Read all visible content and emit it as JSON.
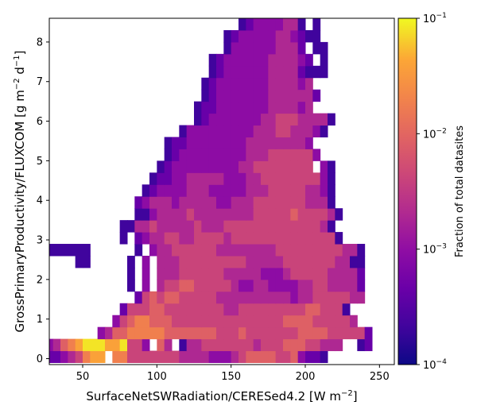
{
  "chart_data": {
    "type": "heatmap",
    "xlabel": "SurfaceNetSWRadiation/CERESed4.2 [W m",
    "xlabel_sup": "−2",
    "xlabel_end": "]",
    "ylabel": "GrossPrimaryProductivity/FLUXCOM [g m",
    "ylabel_sup1": "−2",
    "ylabel_mid": " d",
    "ylabel_sup2": "−1",
    "ylabel_end": "]",
    "xlim": [
      27.5,
      260
    ],
    "ylim": [
      -0.15,
      8.6
    ],
    "xticks": [
      50,
      100,
      150,
      200,
      250
    ],
    "yticks": [
      0,
      1,
      2,
      3,
      4,
      5,
      6,
      7,
      8
    ],
    "colorscale": "plasma",
    "log_color": true,
    "colorbar": {
      "label": "Fraction of total datasites",
      "min": 0.0001,
      "max": 0.1,
      "ticks": [
        {
          "value": 0.0001,
          "base": "10",
          "exp": "−4"
        },
        {
          "value": 0.001,
          "base": "10",
          "exp": "−3"
        },
        {
          "value": 0.01,
          "base": "10",
          "exp": "−2"
        },
        {
          "value": 0.1,
          "base": "10",
          "exp": "−1"
        }
      ]
    },
    "bin_x_edges": [
      25,
      240
    ],
    "bin_x_width": 5,
    "bin_y_start": -0.1,
    "bin_y_width": 0.3,
    "intensity_rows": [
      "22345788.77555555544443334566665563221",
      "34678999889553.64.1445555555455566655444..12.",
      ".......3466777776666666555655555556666555552",
      ".........356776665555555555555556666555554...",
      "..........2555665555555544555555555665551.",
      "............2565665555544444444443445555544.",
      "...........1.3.4556655555433443333445544442..",
      "...........1.3.4445555554444433345555544442",
      "....11.....1.3.4445555555554444455555554411",
      "111111......1.34455555544444444555555555441",
      "..........1.2344554455554555555555555551",
      "..........11445444445444555555555555541",
      "............1134444544444444555556555541",
      "............234443444443344455555554441",
      ".............12333344433333444555554431",
      "..............1223344444333445555555531",
      "...............123333333334455555555.31",
      "................123333333334445555553",
      "................12233333333444444443",
      "..................13333333334445544431",
      "....................1233333334455544441",
      "....................1223333333444434",
      ".....................1233333334444442",
      ".....................123333333444434",
      "......................1233333344442111",
      "......................12333333444432.1",
      "........................13333334442.11",
      "........................1233333443211",
      "..........................123333441.1",
      "..........................12234333311"
    ]
  }
}
